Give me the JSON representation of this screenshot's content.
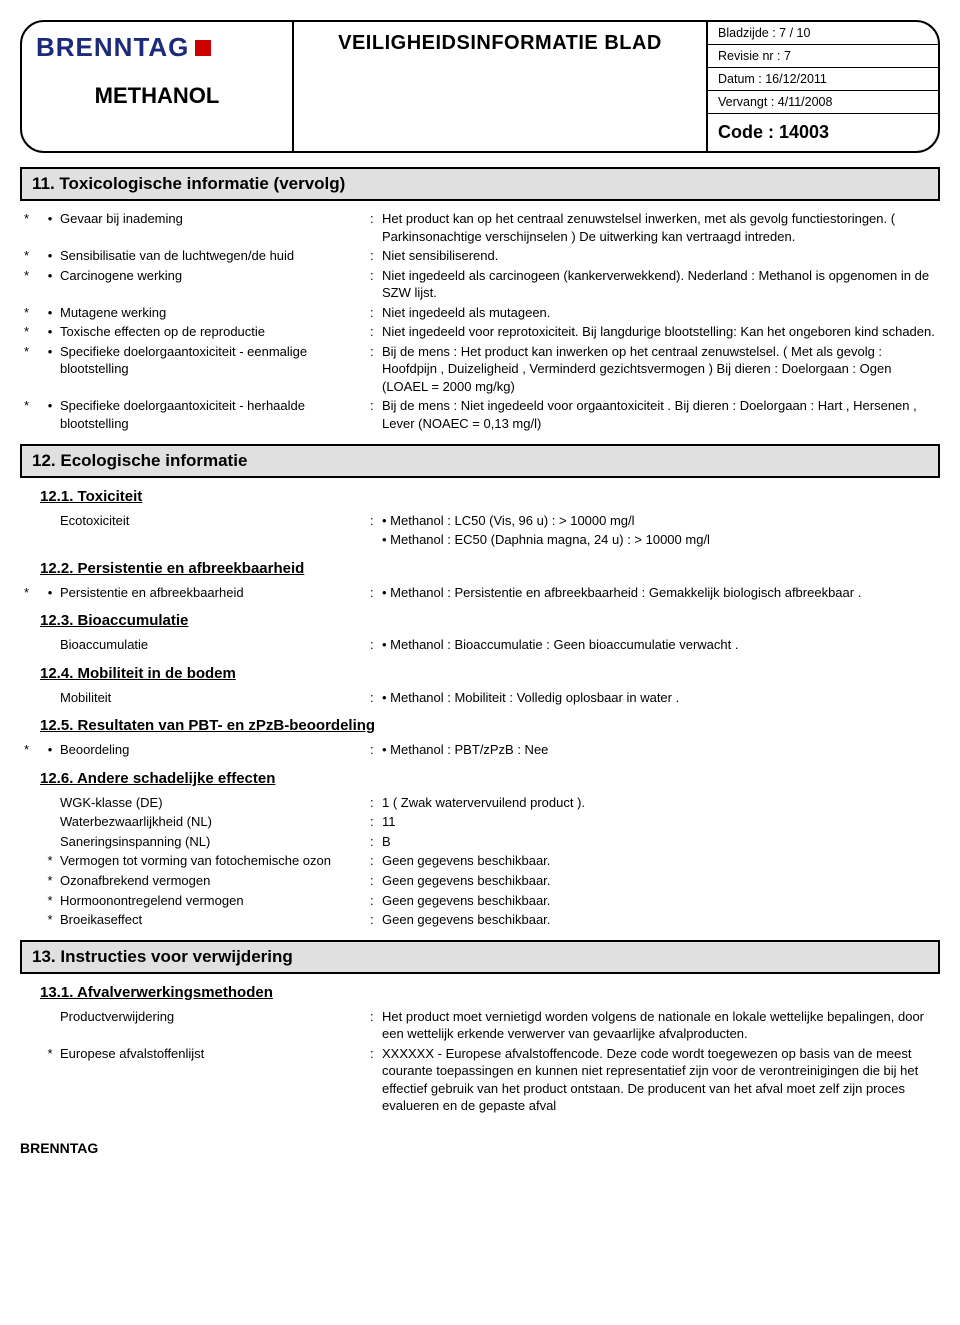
{
  "header": {
    "brand": "BRENNTAG",
    "doc_title": "VEILIGHEIDSINFORMATIE BLAD",
    "product": "METHANOL",
    "page": "Bladzijde : 7 / 10",
    "revision": "Revisie nr : 7",
    "date": "Datum : 16/12/2011",
    "supersedes": "Vervangt : 4/11/2008",
    "code": "Code : 14003"
  },
  "s11": {
    "title": "11.  Toxicologische informatie  (vervolg)",
    "rows": [
      {
        "s": "*",
        "l": "Gevaar bij inademing",
        "v": "Het product kan op het centraal zenuwstelsel inwerken, met als gevolg functiestoringen. ( Parkinsonachtige verschijnselen ) De uitwerking kan vertraagd intreden."
      },
      {
        "s": "*",
        "l": "Sensibilisatie van de luchtwegen/de huid",
        "v": "Niet sensibiliserend."
      },
      {
        "s": "*",
        "l": "Carcinogene werking",
        "v": "Niet ingedeeld als carcinogeen (kankerverwekkend). Nederland : Methanol is opgenomen in de SZW lijst."
      },
      {
        "s": "*",
        "l": "Mutagene werking",
        "v": "Niet ingedeeld als mutageen."
      },
      {
        "s": "*",
        "l": "Toxische effecten op de reproductie",
        "v": "Niet ingedeeld voor reprotoxiciteit. Bij langdurige blootstelling:  Kan het ongeboren kind schaden."
      },
      {
        "s": "*",
        "l": "Specifieke doelorgaantoxiciteit - eenmalige blootstelling",
        "v": "Bij de mens : Het product kan inwerken op het centraal zenuwstelsel. ( Met als gevolg : Hoofdpijn , Duizeligheid , Verminderd gezichtsvermogen ) Bij dieren : Doelorgaan : Ogen (LOAEL = 2000 mg/kg)"
      },
      {
        "s": "*",
        "l": "Specifieke doelorgaantoxiciteit - herhaalde blootstelling",
        "v": "Bij de mens : Niet ingedeeld voor orgaantoxiciteit . Bij dieren : Doelorgaan : Hart , Hersenen , Lever (NOAEC = 0,13 mg/l)"
      }
    ]
  },
  "s12": {
    "title": "12.  Ecologische informatie",
    "g1": {
      "h": "12.1.  Toxiciteit",
      "rows": [
        {
          "s": "",
          "l": "Ecotoxiciteit",
          "v": "• Methanol : LC50 (Vis, 96 u) : > 10000 mg/l"
        },
        {
          "s": "",
          "l": "",
          "v": "• Methanol : EC50 (Daphnia magna, 24 u) : > 10000 mg/l"
        }
      ]
    },
    "g2": {
      "h": "12.2.  Persistentie en afbreekbaarheid",
      "rows": [
        {
          "s": "*",
          "l": "Persistentie en afbreekbaarheid",
          "v": "• Methanol : Persistentie en afbreekbaarheid : Gemakkelijk biologisch afbreekbaar ."
        }
      ]
    },
    "g3": {
      "h": "12.3.  Bioaccumulatie",
      "rows": [
        {
          "s": "",
          "l": "Bioaccumulatie",
          "v": "• Methanol : Bioaccumulatie : Geen bioaccumulatie verwacht ."
        }
      ]
    },
    "g4": {
      "h": "12.4.  Mobiliteit in de bodem",
      "rows": [
        {
          "s": "",
          "l": "Mobiliteit",
          "v": "• Methanol : Mobiliteit : Volledig oplosbaar in water ."
        }
      ]
    },
    "g5": {
      "h": "12.5.  Resultaten van PBT- en zPzB-beoordeling",
      "rows": [
        {
          "s": "*",
          "l": "Beoordeling",
          "v": "• Methanol : PBT/zPzB : Nee"
        }
      ]
    },
    "g6": {
      "h": "12.6.  Andere schadelijke effecten",
      "rows": [
        {
          "s": "",
          "l": "WGK-klasse (DE)",
          "v": "1 ( Zwak watervervuilend product )."
        },
        {
          "s": "",
          "l": "Waterbezwaarlijkheid (NL)",
          "v": "11"
        },
        {
          "s": "",
          "l": "Saneringsinspanning (NL)",
          "v": "B"
        },
        {
          "s": "*",
          "l": "Vermogen tot vorming van fotochemische ozon",
          "v": "Geen gegevens beschikbaar."
        },
        {
          "s": "*",
          "l": "Ozonafbrekend vermogen",
          "v": "Geen gegevens beschikbaar."
        },
        {
          "s": "*",
          "l": "Hormoonontregelend vermogen",
          "v": "Geen gegevens beschikbaar."
        },
        {
          "s": "*",
          "l": "Broeikaseffect",
          "v": "Geen gegevens beschikbaar."
        }
      ]
    }
  },
  "s13": {
    "title": "13.  Instructies voor verwijdering",
    "g1": {
      "h": "13.1.  Afvalverwerkingsmethoden",
      "rows": [
        {
          "s": "",
          "l": "Productverwijdering",
          "v": "Het product moet vernietigd worden volgens de nationale en lokale wettelijke bepalingen, door een wettelijk erkende verwerver van gevaarlijke afvalproducten."
        },
        {
          "s": "*",
          "l": "Europese afvalstoffenlijst",
          "v": "XXXXXX - Europese afvalstoffencode. Deze code wordt toegewezen op basis van de meest courante toepassingen en kunnen niet representatief zijn voor de verontreinigingen die bij het effectief gebruik van het product ontstaan. De producent van het afval moet zelf zijn proces evalueren en de gepaste afval"
        }
      ]
    }
  },
  "footer": "BRENNTAG"
}
